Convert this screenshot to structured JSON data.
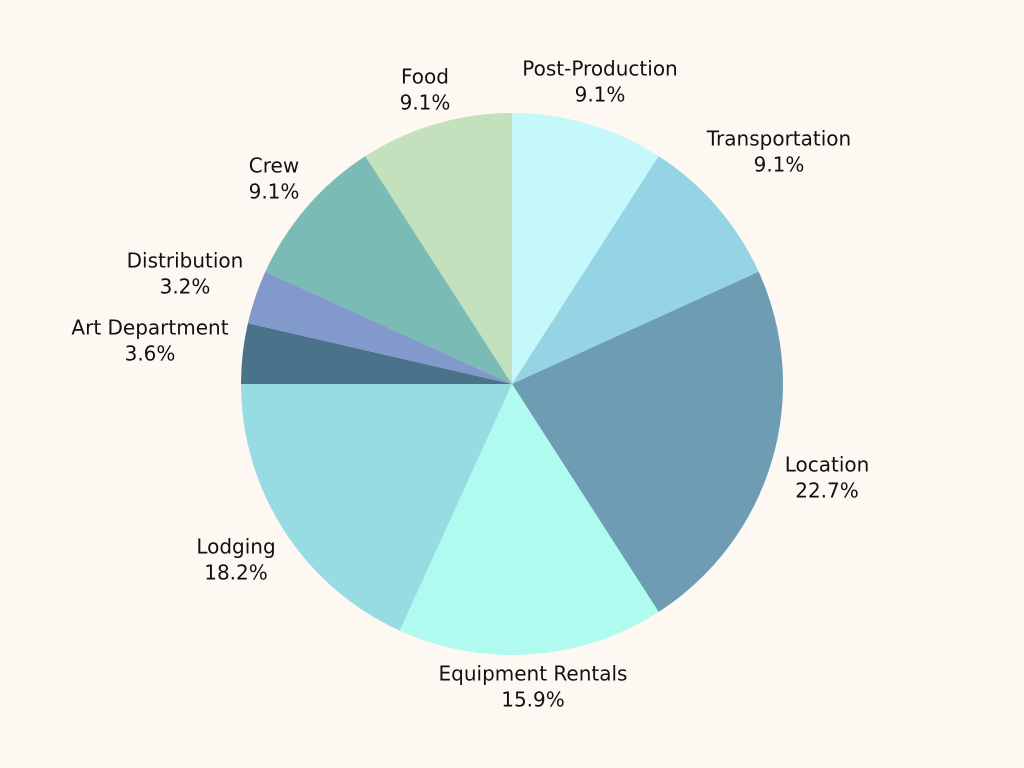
{
  "chart_data": {
    "type": "pie",
    "title": "",
    "slices": [
      {
        "name": "Post-Production",
        "value": 9.1,
        "value_label": "9.1%",
        "color": "#c4f8fb"
      },
      {
        "name": "Transportation",
        "value": 9.1,
        "value_label": "9.1%",
        "color": "#94d4e5"
      },
      {
        "name": "Location",
        "value": 22.7,
        "value_label": "22.7%",
        "color": "#6d9cb3"
      },
      {
        "name": "Equipment Rentals",
        "value": 15.9,
        "value_label": "15.9%",
        "color": "#affbef"
      },
      {
        "name": "Lodging",
        "value": 18.2,
        "value_label": "18.2%",
        "color": "#97dce2"
      },
      {
        "name": "Art Department",
        "value": 3.6,
        "value_label": "3.6%",
        "color": "#4a728b"
      },
      {
        "name": "Distribution",
        "value": 3.2,
        "value_label": "3.2%",
        "color": "#8299cc"
      },
      {
        "name": "Crew",
        "value": 9.1,
        "value_label": "9.1%",
        "color": "#7bbbb6"
      },
      {
        "name": "Food",
        "value": 9.1,
        "value_label": "9.1%",
        "color": "#c3e1bd"
      }
    ],
    "start_angle": "top (12 o'clock)",
    "direction": "clockwise",
    "legend": "none"
  }
}
